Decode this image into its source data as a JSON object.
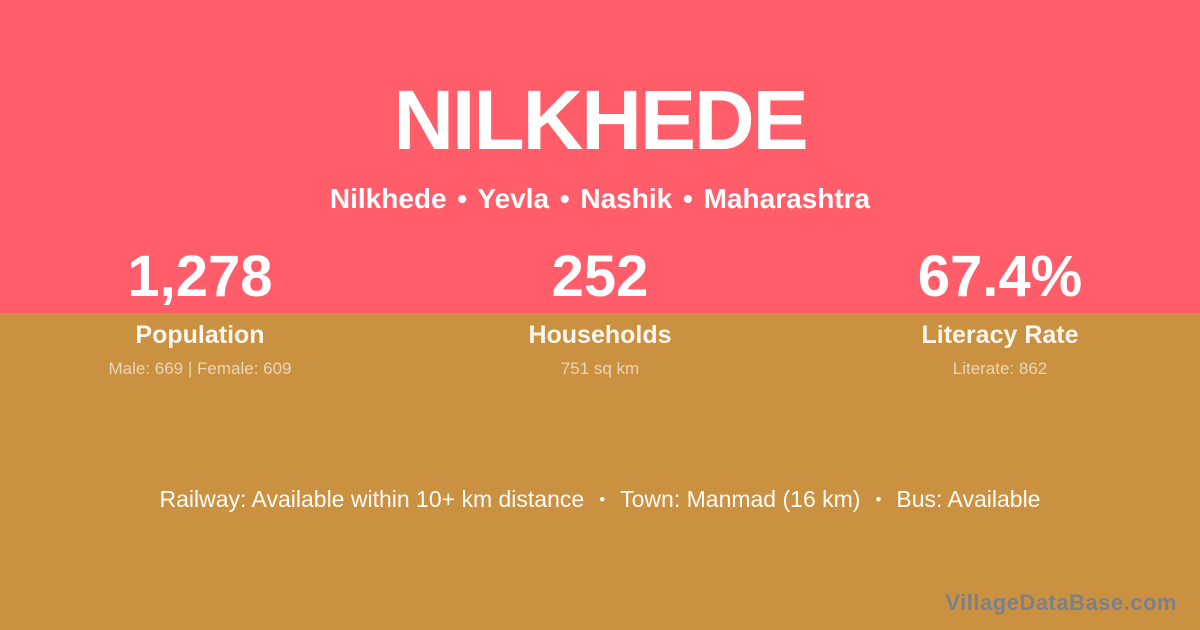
{
  "colors": {
    "top_band": "#ff5d6a",
    "bottom_band": "#ca9140",
    "text_primary": "#ffffff",
    "watermark_text": "#7b8089"
  },
  "header": {
    "title": "NILKHEDE",
    "breadcrumb": "Nilkhede • Yevla • Nashik • Maharashtra"
  },
  "stats": [
    {
      "value": "1,278",
      "label": "Population",
      "detail": "Male: 669 | Female: 609"
    },
    {
      "value": "252",
      "label": "Households",
      "detail": "751 sq km"
    },
    {
      "value": "67.4%",
      "label": "Literacy Rate",
      "detail": "Literate: 862"
    }
  ],
  "footer": {
    "separator": "•",
    "segments": [
      "Railway: Available within 10+ km distance",
      "Town: Manmad (16 km)",
      "Bus: Available"
    ],
    "watermark": "VillageDataBase.com"
  }
}
